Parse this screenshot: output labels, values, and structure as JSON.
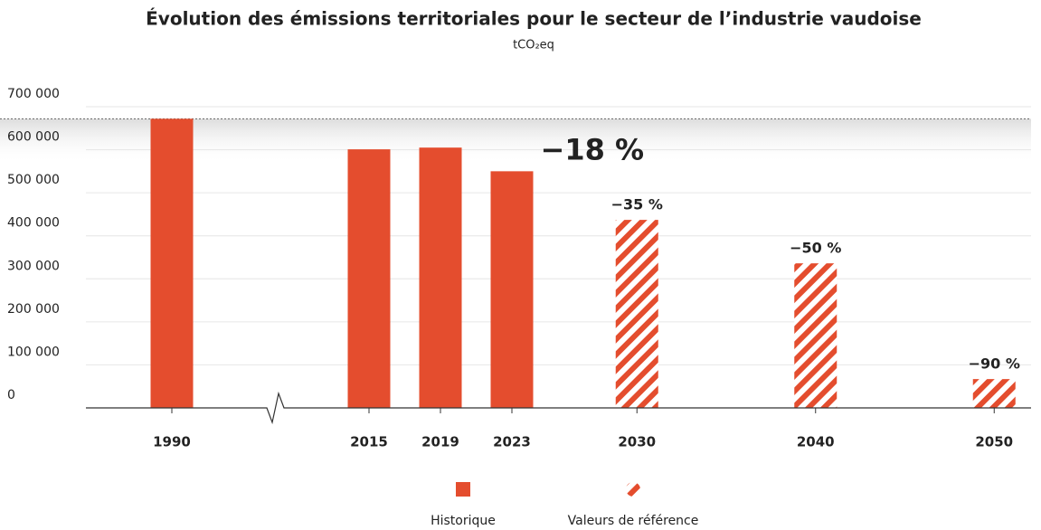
{
  "chart_data": {
    "type": "bar",
    "title": "Évolution des émissions territoriales pour le secteur de l’industrie vaudoise",
    "subtitle": "tCO₂eq",
    "categories": [
      "1990",
      "2015",
      "2019",
      "2023",
      "2030",
      "2040",
      "2050"
    ],
    "series": [
      {
        "name": "Historique",
        "color": "#e44d2e",
        "pattern": "solid",
        "values": [
          672000,
          601000,
          605000,
          550000,
          null,
          null,
          null
        ]
      },
      {
        "name": "Valeurs de référence",
        "color": "#e44d2e",
        "pattern": "hatched",
        "values": [
          null,
          null,
          null,
          null,
          437000,
          336000,
          67000
        ]
      }
    ],
    "annotations": [
      {
        "x": "2023",
        "text": "−18 %",
        "style": "large"
      },
      {
        "x": "2030",
        "text": "−35 %",
        "style": "small"
      },
      {
        "x": "2040",
        "text": "−50 %",
        "style": "small"
      },
      {
        "x": "2050",
        "text": "−90 %",
        "style": "small"
      }
    ],
    "reference_line": 672000,
    "ylim": [
      0,
      700000
    ],
    "yticks": [
      {
        "value": 0,
        "label": "0"
      },
      {
        "value": 100000,
        "label": "100 000"
      },
      {
        "value": 200000,
        "label": "200 000"
      },
      {
        "value": 300000,
        "label": "300 000"
      },
      {
        "value": 400000,
        "label": "400 000"
      },
      {
        "value": 500000,
        "label": "500 000"
      },
      {
        "value": 600000,
        "label": "600 000"
      },
      {
        "value": 700000,
        "label": "700 000"
      }
    ],
    "grid": true
  }
}
